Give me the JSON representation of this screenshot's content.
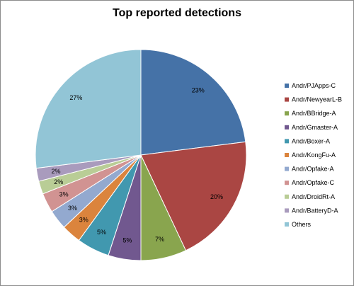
{
  "chart_data": {
    "type": "pie",
    "title": "Top reported detections",
    "legend_position": "right",
    "series": [
      {
        "name": "Andr/PJApps-C",
        "value": 23,
        "label": "23%",
        "color": "#4572A7"
      },
      {
        "name": "Andr/NewyearL-B",
        "value": 20,
        "label": "20%",
        "color": "#AA4643"
      },
      {
        "name": "Andr/BBridge-A",
        "value": 7,
        "label": "7%",
        "color": "#89A54E"
      },
      {
        "name": "Andr/Gmaster-A",
        "value": 5,
        "label": "5%",
        "color": "#71588F"
      },
      {
        "name": "Andr/Boxer-A",
        "value": 5,
        "label": "5%",
        "color": "#4198AF"
      },
      {
        "name": "Andr/KongFu-A",
        "value": 3,
        "label": "3%",
        "color": "#DB843D"
      },
      {
        "name": "Andr/Opfake-A",
        "value": 3,
        "label": "3%",
        "color": "#93A9CF"
      },
      {
        "name": "Andr/Opfake-C",
        "value": 3,
        "label": "3%",
        "color": "#D19392"
      },
      {
        "name": "Andr/DroidRt-A",
        "value": 2,
        "label": "2%",
        "color": "#B9CD96"
      },
      {
        "name": "Andr/BatteryD-A",
        "value": 2,
        "label": "2%",
        "color": "#A99BBD"
      },
      {
        "name": "Others",
        "value": 27,
        "label": "27%",
        "color": "#92C5D6"
      }
    ]
  }
}
